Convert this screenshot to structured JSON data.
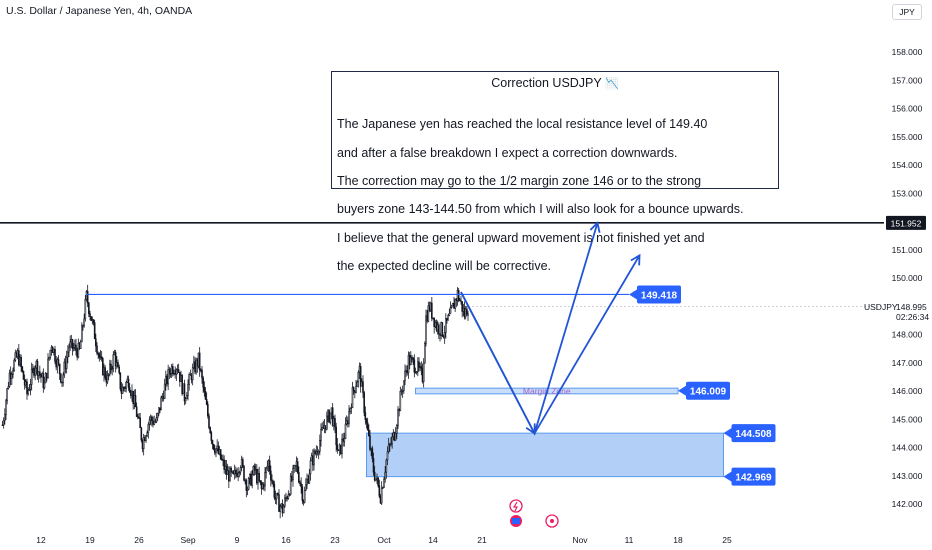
{
  "header": {
    "title": "U.S. Dollar / Japanese Yen, 4h, OANDA",
    "currency": "JPY"
  },
  "note": {
    "title": "Correction USDJPY",
    "title_emoji": "📉",
    "lines": [
      "The Japanese yen has reached the local resistance level of 149.40",
      "and after a false breakdown I expect a correction downwards.",
      "The correction may go to the 1/2 margin zone 146 or to the strong",
      "buyers zone 143-144.50 from which I will also look for a bounce upwards.",
      "I believe that the general upward movement is not finished yet and",
      "the expected decline will be corrective."
    ]
  },
  "live": {
    "symbol": "USDJPY",
    "price": "148.995",
    "countdown": "02:26:34"
  },
  "chart_data": {
    "type": "line",
    "series_style": "candlestick",
    "ylim": [
      141.5,
      158.8
    ],
    "y_ticks": [
      "158.000",
      "157.000",
      "156.000",
      "155.000",
      "154.000",
      "153.000",
      "151.000",
      "150.000",
      "148.000",
      "147.000",
      "146.000",
      "145.000",
      "144.000",
      "143.000",
      "142.000"
    ],
    "x_ticks": [
      "12",
      "19",
      "26",
      "Sep",
      "9",
      "16",
      "23",
      "Oct",
      "14",
      "21",
      "Nov",
      "11",
      "18",
      "25"
    ],
    "x_tick_positions": [
      12,
      19,
      26,
      33,
      40,
      47,
      54,
      61,
      68,
      75,
      89,
      96,
      103,
      110
    ],
    "xlim": [
      12,
      130
    ],
    "price_path": [
      {
        "t": 6.5,
        "v": 144.8
      },
      {
        "t": 7.5,
        "v": 146.6
      },
      {
        "t": 8.7,
        "v": 147.3
      },
      {
        "t": 10.0,
        "v": 145.9
      },
      {
        "t": 11.2,
        "v": 147.0
      },
      {
        "t": 12.5,
        "v": 146.2
      },
      {
        "t": 13.5,
        "v": 147.7
      },
      {
        "t": 15.0,
        "v": 146.4
      },
      {
        "t": 16.0,
        "v": 147.6
      },
      {
        "t": 17.5,
        "v": 147.4
      },
      {
        "t": 18.5,
        "v": 149.35
      },
      {
        "t": 19.5,
        "v": 148.2
      },
      {
        "t": 20.5,
        "v": 147.0
      },
      {
        "t": 21.5,
        "v": 146.4
      },
      {
        "t": 22.5,
        "v": 147.3
      },
      {
        "t": 23.5,
        "v": 146.0
      },
      {
        "t": 24.5,
        "v": 146.4
      },
      {
        "t": 25.5,
        "v": 145.4
      },
      {
        "t": 26.5,
        "v": 144.2
      },
      {
        "t": 27.5,
        "v": 145.0
      },
      {
        "t": 28.5,
        "v": 144.9
      },
      {
        "t": 29.5,
        "v": 146.0
      },
      {
        "t": 30.5,
        "v": 146.8
      },
      {
        "t": 31.5,
        "v": 146.9
      },
      {
        "t": 32.5,
        "v": 145.8
      },
      {
        "t": 33.5,
        "v": 146.6
      },
      {
        "t": 34.5,
        "v": 147.1
      },
      {
        "t": 35.5,
        "v": 145.6
      },
      {
        "t": 36.5,
        "v": 144.2
      },
      {
        "t": 37.5,
        "v": 143.7
      },
      {
        "t": 38.5,
        "v": 143.1
      },
      {
        "t": 39.5,
        "v": 142.9
      },
      {
        "t": 40.5,
        "v": 143.5
      },
      {
        "t": 41.5,
        "v": 142.6
      },
      {
        "t": 42.5,
        "v": 143.2
      },
      {
        "t": 43.5,
        "v": 142.5
      },
      {
        "t": 44.5,
        "v": 143.5
      },
      {
        "t": 45.5,
        "v": 142.2
      },
      {
        "t": 46.5,
        "v": 141.8
      },
      {
        "t": 47.5,
        "v": 142.6
      },
      {
        "t": 48.5,
        "v": 143.4
      },
      {
        "t": 49.5,
        "v": 142.2
      },
      {
        "t": 50.5,
        "v": 143.4
      },
      {
        "t": 51.5,
        "v": 144.0
      },
      {
        "t": 52.5,
        "v": 144.8
      },
      {
        "t": 53.5,
        "v": 145.3
      },
      {
        "t": 54.5,
        "v": 143.7
      },
      {
        "t": 55.5,
        "v": 144.6
      },
      {
        "t": 56.5,
        "v": 145.9
      },
      {
        "t": 57.5,
        "v": 146.7
      },
      {
        "t": 58.5,
        "v": 144.8
      },
      {
        "t": 59.5,
        "v": 143.2
      },
      {
        "t": 60.5,
        "v": 142.3
      },
      {
        "t": 61.5,
        "v": 143.8
      },
      {
        "t": 62.5,
        "v": 144.5
      },
      {
        "t": 63.5,
        "v": 146.0
      },
      {
        "t": 64.5,
        "v": 147.1
      },
      {
        "t": 65.5,
        "v": 146.9
      },
      {
        "t": 66.5,
        "v": 146.5
      },
      {
        "t": 67.0,
        "v": 148.6
      },
      {
        "t": 67.5,
        "v": 149.0
      },
      {
        "t": 68.5,
        "v": 148.3
      },
      {
        "t": 69.5,
        "v": 148.1
      },
      {
        "t": 70.5,
        "v": 148.7
      },
      {
        "t": 71.5,
        "v": 149.45
      },
      {
        "t": 72.5,
        "v": 148.7
      },
      {
        "t": 73.0,
        "v": 148.99
      }
    ],
    "horizontal_levels": [
      {
        "value": 151.952,
        "label": "151.952",
        "style": "dark"
      },
      {
        "value": 149.418,
        "label": "149.418",
        "style": "blue"
      },
      {
        "value": 146.009,
        "label": "146.009",
        "style": "blue"
      },
      {
        "value": 144.508,
        "label": "144.508",
        "style": "blue"
      },
      {
        "value": 142.969,
        "label": "142.969",
        "style": "blue"
      }
    ],
    "zones": [
      {
        "name": "Margin Zone",
        "from": 145.9,
        "to": 146.1,
        "t_start": 65.5,
        "t_end": 103.0
      },
      {
        "name": "",
        "from": 142.969,
        "to": 144.508,
        "t_start": 58.5,
        "t_end": 109.5
      }
    ],
    "resistance_line": {
      "value": 149.418,
      "t_start": 18.5,
      "t_end": 96.0
    },
    "projection_paths": [
      [
        {
          "t": 72.0,
          "v": 149.5
        },
        {
          "t": 82.5,
          "v": 144.5
        },
        {
          "t": 91.5,
          "v": 151.95
        }
      ],
      [
        {
          "t": 72.0,
          "v": 149.5
        },
        {
          "t": 82.5,
          "v": 144.5
        },
        {
          "t": 97.5,
          "v": 150.8
        }
      ]
    ],
    "grid": false
  }
}
